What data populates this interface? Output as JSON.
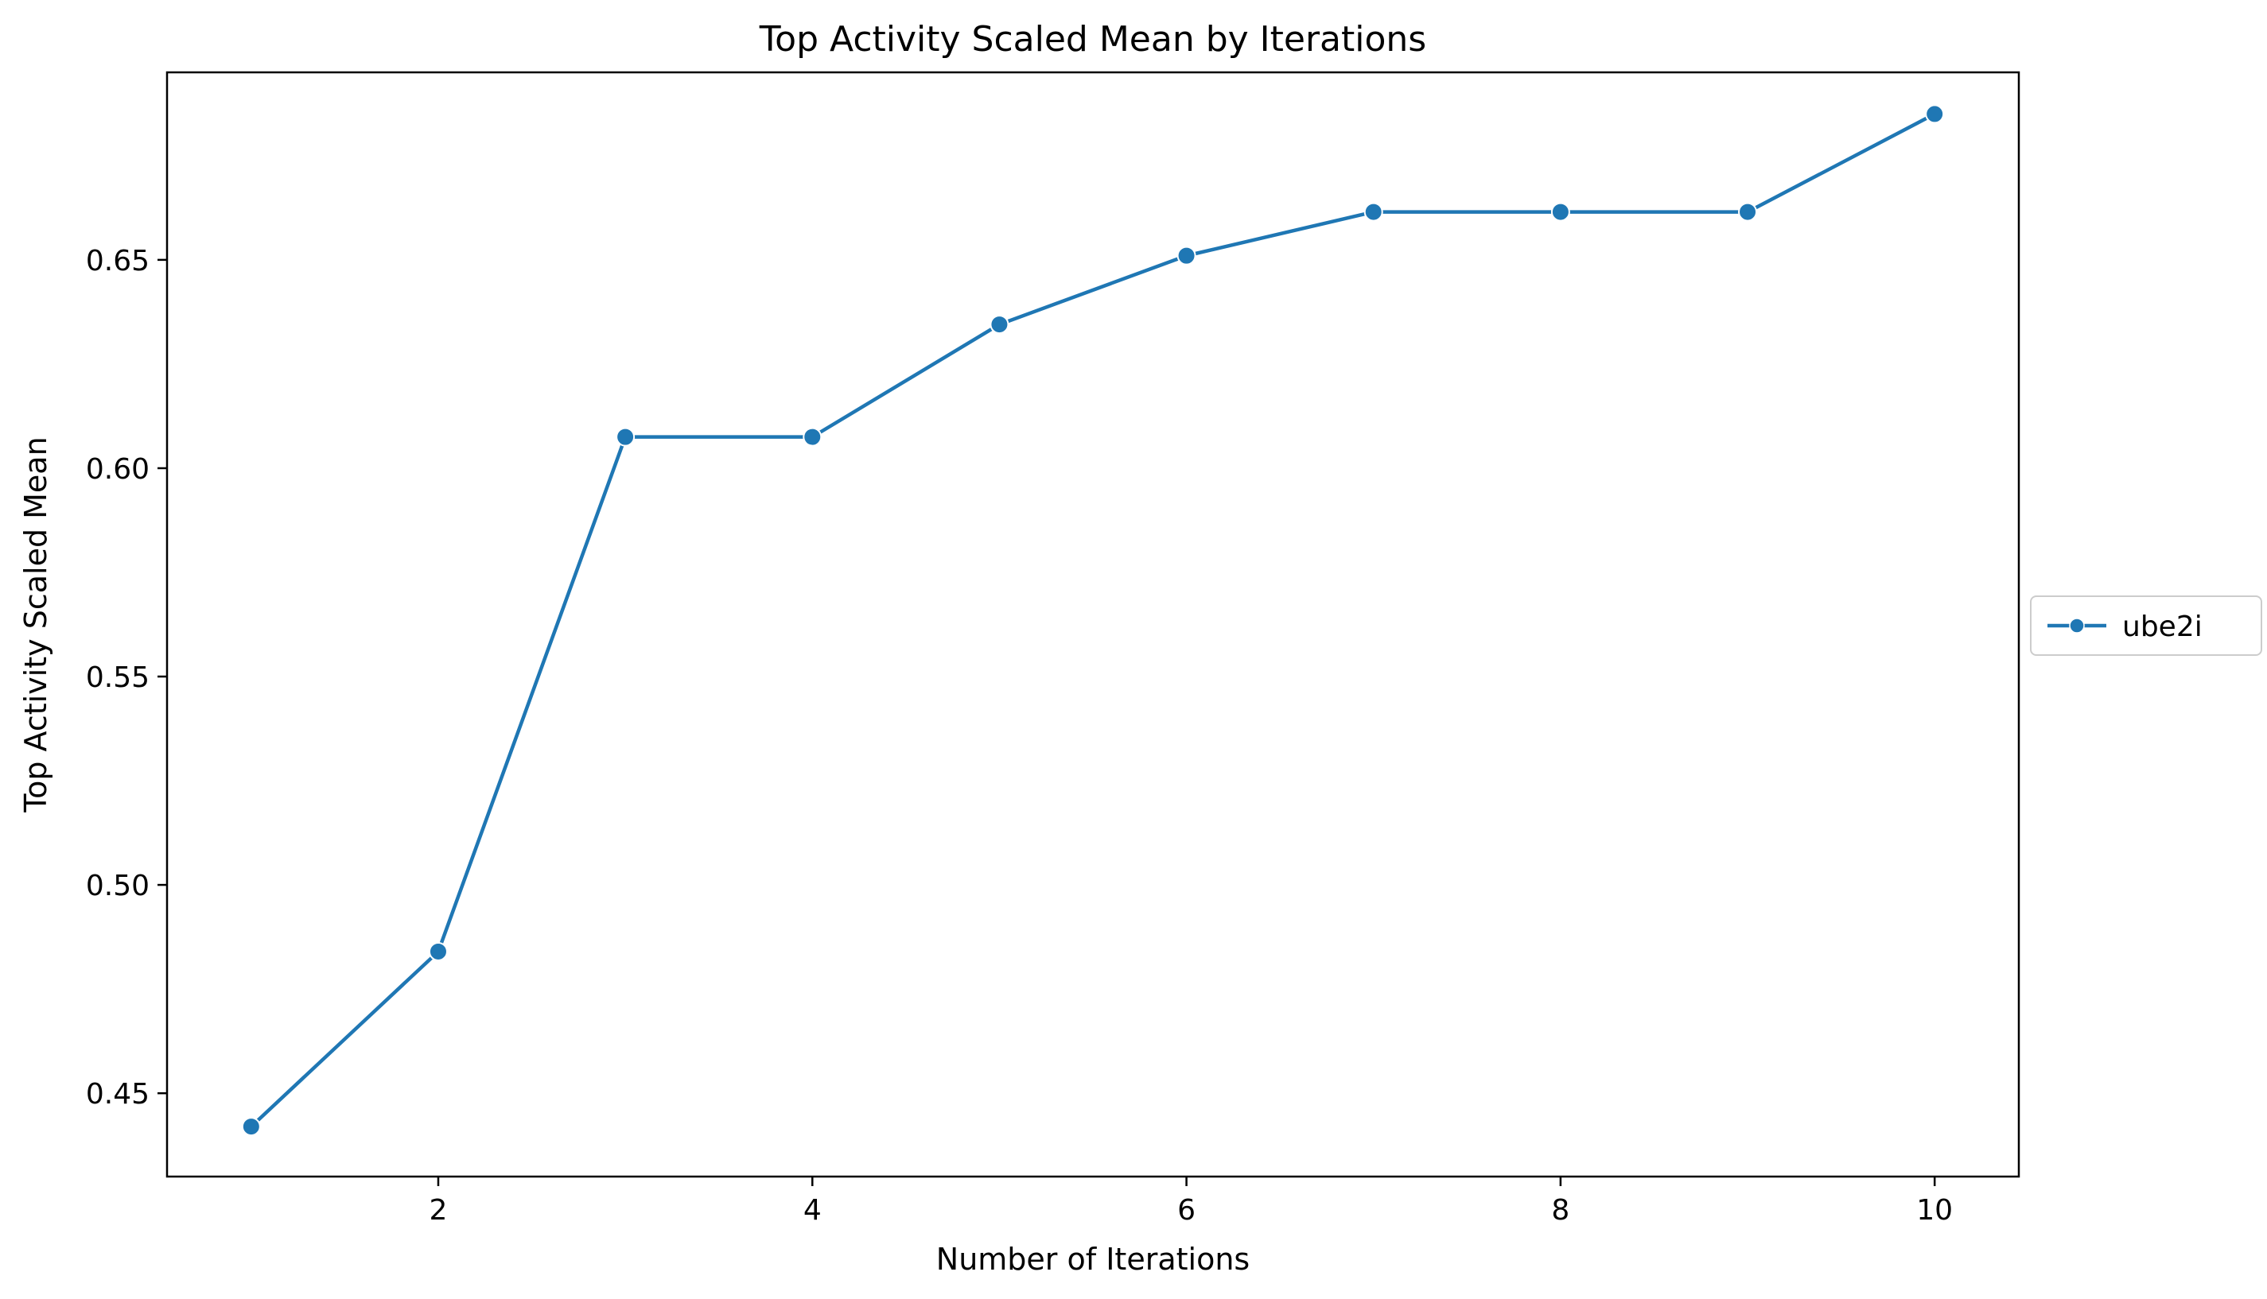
{
  "chart_data": {
    "type": "line",
    "title": "Top Activity Scaled Mean by Iterations",
    "xlabel": "Number of Iterations",
    "ylabel": "Top Activity Scaled Mean",
    "xlim": [
      0.55,
      10.45
    ],
    "ylim": [
      0.43,
      0.695
    ],
    "x_ticks": [
      2,
      4,
      6,
      8,
      10
    ],
    "x_tick_labels": [
      "2",
      "4",
      "6",
      "8",
      "10"
    ],
    "y_ticks": [
      0.45,
      0.5,
      0.55,
      0.6,
      0.65
    ],
    "y_tick_labels": [
      "0.45",
      "0.50",
      "0.55",
      "0.60",
      "0.65"
    ],
    "grid": false,
    "legend": {
      "placement": "outside-right",
      "entries": [
        "ube2i"
      ]
    },
    "series": [
      {
        "name": "ube2i",
        "color": "#1f77b4",
        "marker": "circle",
        "x": [
          1,
          2,
          3,
          4,
          5,
          6,
          7,
          8,
          9,
          10
        ],
        "y": [
          0.442,
          0.484,
          0.6075,
          0.6075,
          0.6345,
          0.651,
          0.6615,
          0.6615,
          0.6615,
          0.685
        ]
      }
    ]
  }
}
